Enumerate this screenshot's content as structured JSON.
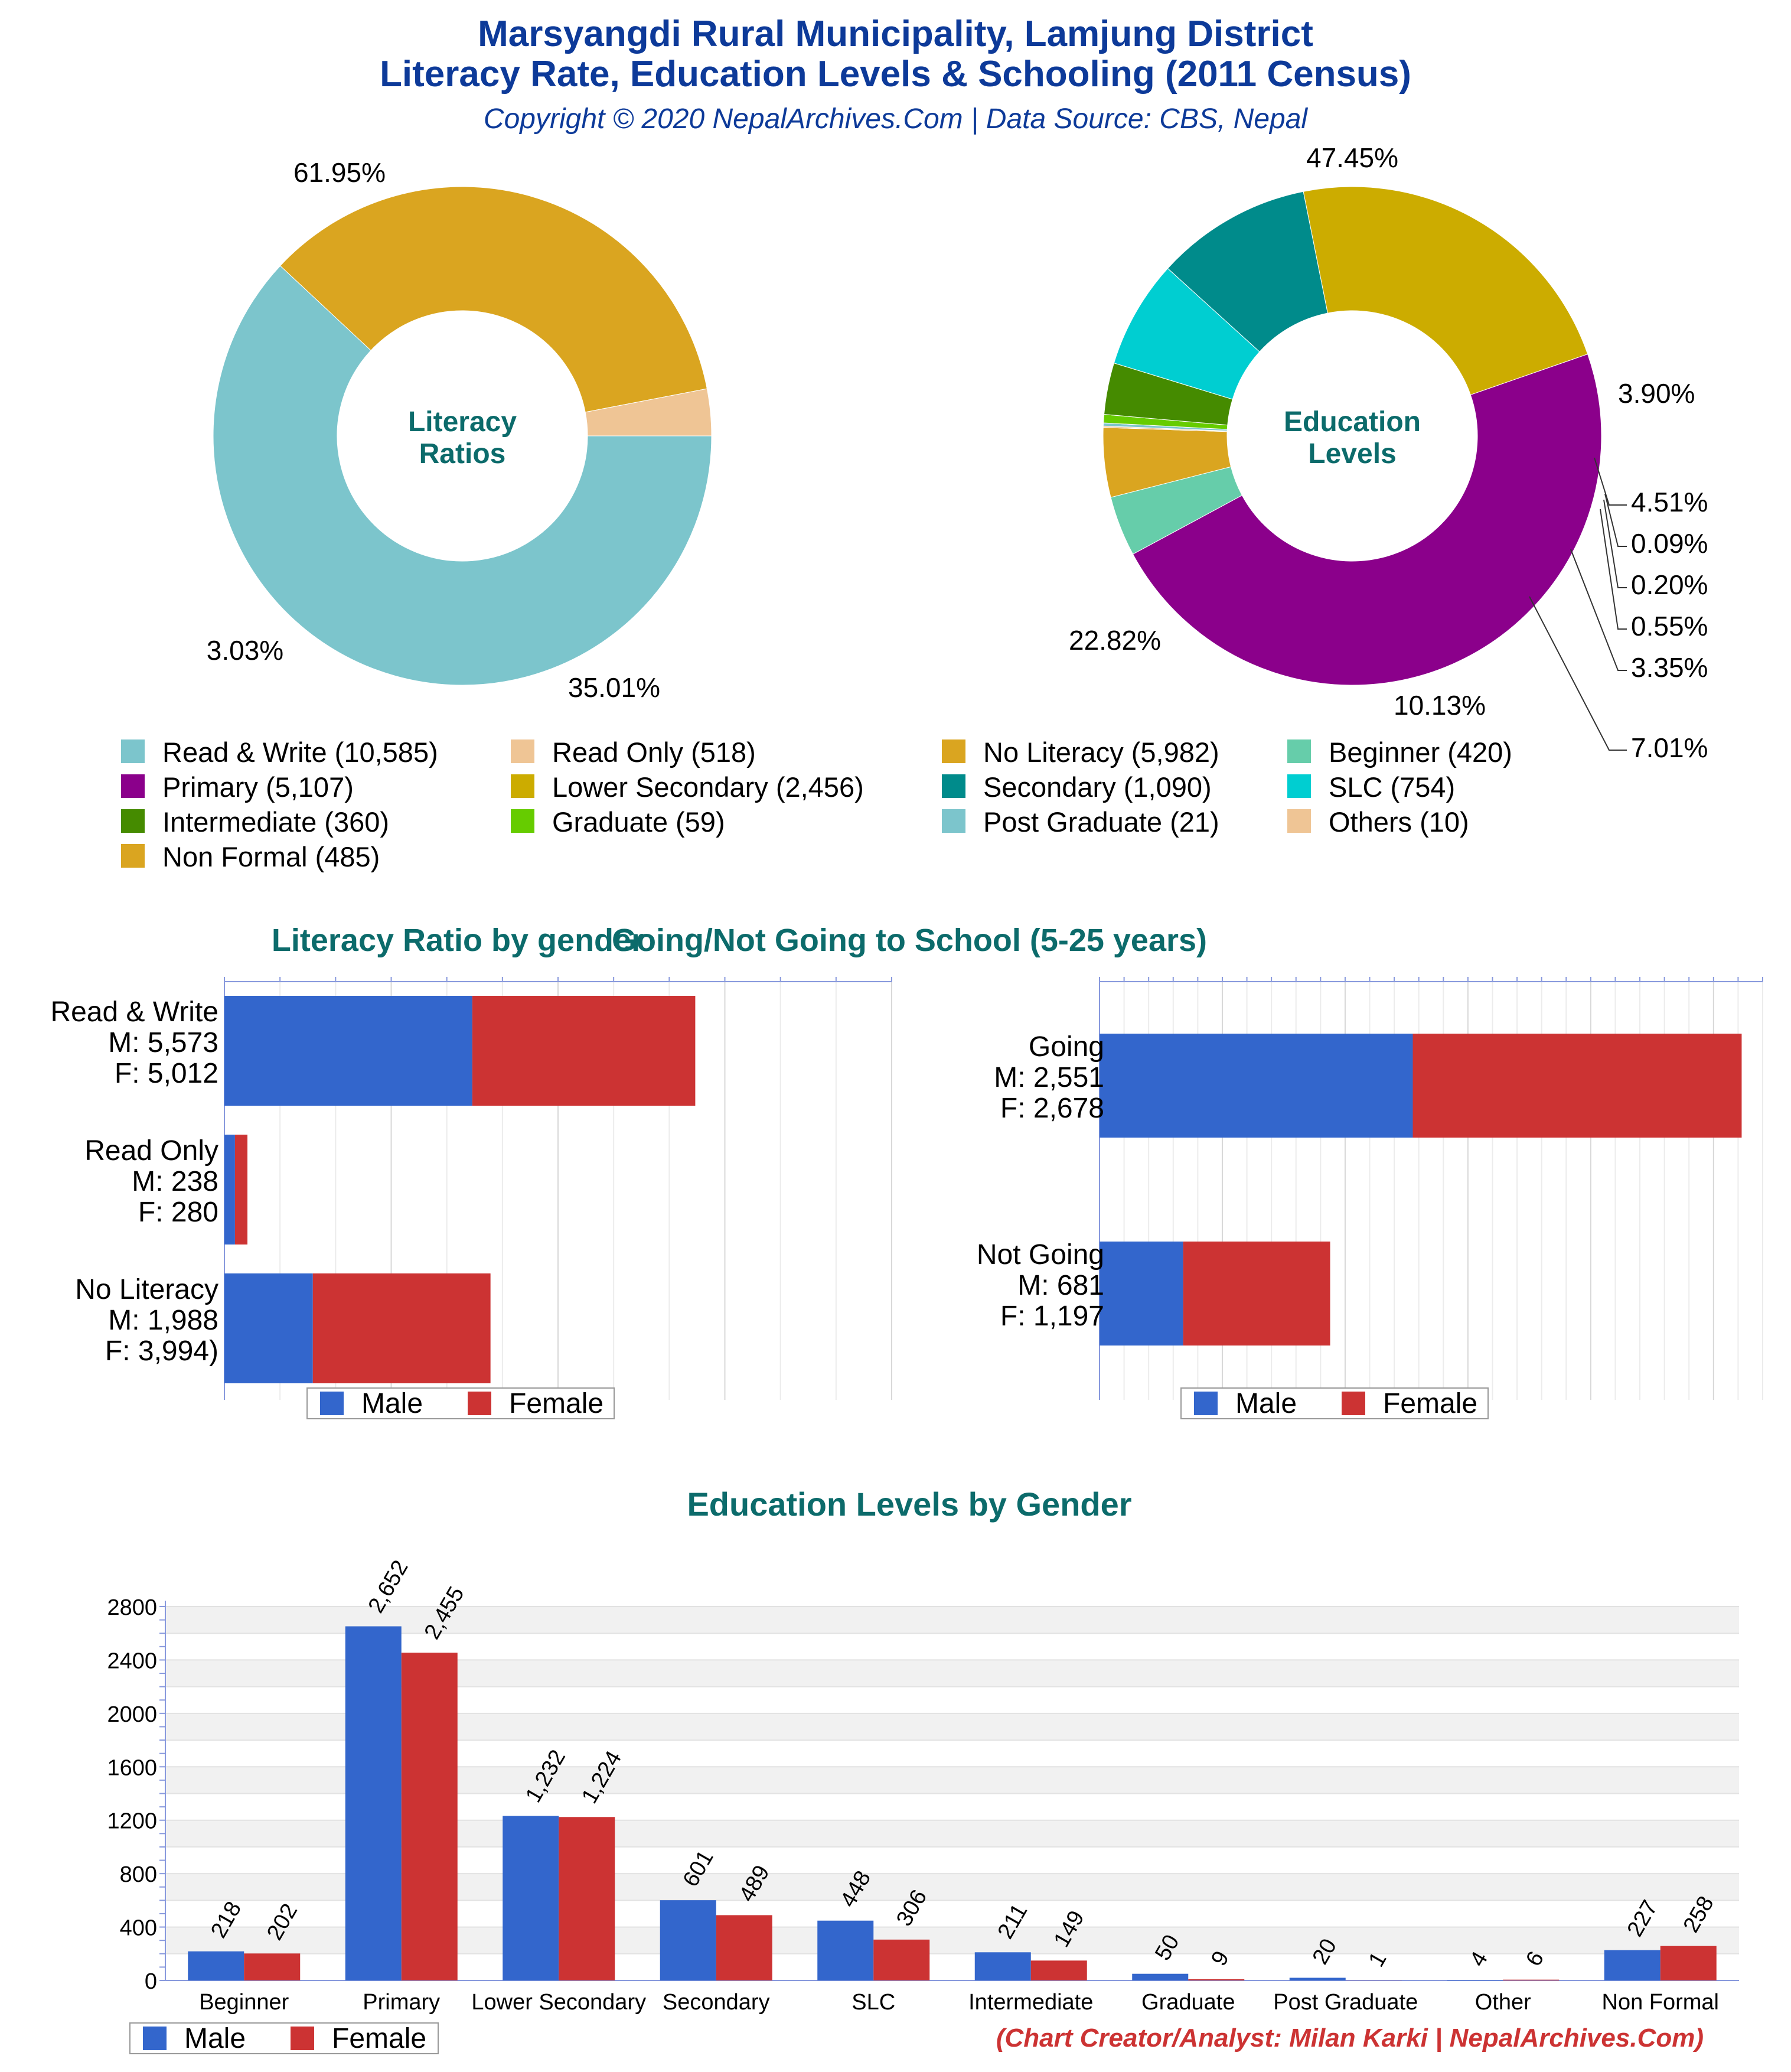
{
  "header": {
    "title_line1": "Marsyangdi Rural Municipality, Lamjung District",
    "title_line2": "Literacy Rate, Education Levels & Schooling (2011 Census)",
    "subtitle": "Copyright © 2020 NepalArchives.Com | Data Source: CBS, Nepal"
  },
  "colors": {
    "title": "#0d3a99",
    "section_title": "#0c6b6b",
    "male": "#3366cc",
    "female": "#cc3333",
    "footer": "#cc3333"
  },
  "chart_data": [
    {
      "type": "pie",
      "center_label": [
        "Literacy",
        "Ratios"
      ],
      "slices": [
        {
          "label": "Read & Write",
          "value": 10585,
          "percent": "61.95%",
          "color": "#7cc5cc"
        },
        {
          "label": "No Literacy",
          "value": 5982,
          "percent": "35.01%",
          "color": "#daa520"
        },
        {
          "label": "Read Only",
          "value": 518,
          "percent": "3.03%",
          "color": "#efc595"
        }
      ]
    },
    {
      "type": "pie",
      "center_label": [
        "Education",
        "Levels"
      ],
      "slices": [
        {
          "label": "Primary",
          "value": 5107,
          "percent": "47.45%",
          "color": "#8b008b"
        },
        {
          "label": "Beginner",
          "value": 420,
          "percent": "3.90%",
          "color": "#66cdaa"
        },
        {
          "label": "Non Formal",
          "value": 485,
          "percent": "4.51%",
          "color": "#daa520"
        },
        {
          "label": "Others",
          "value": 10,
          "percent": "0.09%",
          "color": "#efc595"
        },
        {
          "label": "Post Graduate",
          "value": 21,
          "percent": "0.20%",
          "color": "#7cc5cc"
        },
        {
          "label": "Graduate",
          "value": 59,
          "percent": "0.55%",
          "color": "#66cc00"
        },
        {
          "label": "Intermediate",
          "value": 360,
          "percent": "3.35%",
          "color": "#458b00"
        },
        {
          "label": "SLC",
          "value": 754,
          "percent": "7.01%",
          "color": "#00ced1"
        },
        {
          "label": "Secondary",
          "value": 1090,
          "percent": "10.13%",
          "color": "#008b8b"
        },
        {
          "label": "Lower Secondary",
          "value": 2456,
          "percent": "22.82%",
          "color": "#ccac00"
        }
      ]
    },
    {
      "type": "bar",
      "orientation": "horizontal",
      "stacked": true,
      "title": "Literacy Ratio by gender",
      "categories": [
        {
          "lines": [
            "Read & Write",
            "M: 5,573",
            "F: 5,012"
          ]
        },
        {
          "lines": [
            "Read Only",
            "M: 238",
            "F: 280"
          ]
        },
        {
          "lines": [
            "No Literacy",
            "M: 1,988",
            "F: 3,994)"
          ]
        }
      ],
      "series": [
        {
          "name": "Male",
          "values": [
            5573,
            238,
            1988
          ]
        },
        {
          "name": "Female",
          "values": [
            5012,
            280,
            3994
          ]
        }
      ],
      "xlim": [
        0,
        15000
      ],
      "legend": "bottom"
    },
    {
      "type": "bar",
      "orientation": "horizontal",
      "stacked": true,
      "title": "Going/Not Going to School (5-25 years)",
      "categories": [
        {
          "lines": [
            "Going",
            "M: 2,551",
            "F: 2,678"
          ]
        },
        {
          "lines": [
            "Not Going",
            "M: 681",
            "F: 1,197"
          ]
        }
      ],
      "series": [
        {
          "name": "Male",
          "values": [
            2551,
            681
          ]
        },
        {
          "name": "Female",
          "values": [
            2678,
            1197
          ]
        }
      ],
      "xlim": [
        0,
        5400
      ],
      "legend": "bottom"
    },
    {
      "type": "bar",
      "title": "Education Levels by Gender",
      "categories": [
        "Beginner",
        "Primary",
        "Lower Secondary",
        "Secondary",
        "SLC",
        "Intermediate",
        "Graduate",
        "Post Graduate",
        "Other",
        "Non Formal"
      ],
      "series": [
        {
          "name": "Male",
          "values": [
            218,
            2652,
            1232,
            601,
            448,
            211,
            50,
            20,
            4,
            227
          ],
          "labels": [
            "218",
            "2,652",
            "1,232",
            "601",
            "448",
            "211",
            "50",
            "20",
            "4",
            "227"
          ]
        },
        {
          "name": "Female",
          "values": [
            202,
            2455,
            1224,
            489,
            306,
            149,
            9,
            1,
            6,
            258
          ],
          "labels": [
            "202",
            "2,455",
            "1,224",
            "489",
            "306",
            "149",
            "9",
            "1",
            "6",
            "258"
          ]
        }
      ],
      "ylim": [
        0,
        2800
      ],
      "yticks": [
        "0",
        "400",
        "800",
        "1200",
        "1600",
        "2000",
        "2400",
        "2800"
      ],
      "legend": "bottom-left"
    }
  ],
  "legend_items": [
    {
      "text": "Read & Write (10,585)",
      "color": "#7cc5cc"
    },
    {
      "text": "Read Only (518)",
      "color": "#efc595"
    },
    {
      "text": "No Literacy (5,982)",
      "color": "#daa520"
    },
    {
      "text": "Beginner (420)",
      "color": "#66cdaa"
    },
    {
      "text": "Primary (5,107)",
      "color": "#8b008b"
    },
    {
      "text": "Lower Secondary (2,456)",
      "color": "#ccac00"
    },
    {
      "text": "Secondary (1,090)",
      "color": "#008b8b"
    },
    {
      "text": "SLC (754)",
      "color": "#00ced1"
    },
    {
      "text": "Intermediate (360)",
      "color": "#458b00"
    },
    {
      "text": "Graduate (59)",
      "color": "#66cc00"
    },
    {
      "text": "Post Graduate (21)",
      "color": "#7cc5cc"
    },
    {
      "text": "Others (10)",
      "color": "#efc595"
    },
    {
      "text": "Non Formal (485)",
      "color": "#daa520"
    }
  ],
  "footer": "(Chart Creator/Analyst: Milan Karki | NepalArchives.Com)"
}
